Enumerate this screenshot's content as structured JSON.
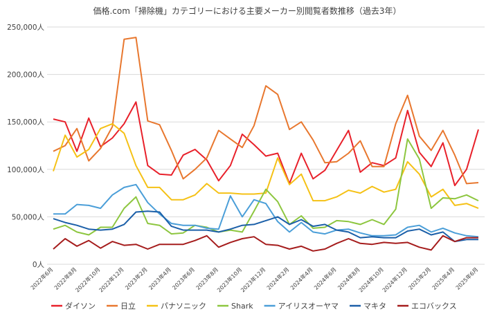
{
  "chart_data": {
    "type": "line",
    "title": "価格.com「掃除機」カテゴリーにおける主要メーカー別閲覧者数推移（過去3年）",
    "xlabel": "",
    "ylabel": "",
    "ylim": [
      0,
      250000
    ],
    "yticks": [
      0,
      50000,
      100000,
      150000,
      200000,
      250000
    ],
    "ytick_labels": [
      "0人",
      "50,000人",
      "100,000人",
      "150,000人",
      "200,000人",
      "250,000人"
    ],
    "grid": true,
    "legend_position": "bottom",
    "x": [
      "2022年6月",
      "2022年7月",
      "2022年8月",
      "2022年9月",
      "2022年10月",
      "2022年11月",
      "2022年12月",
      "2023年1月",
      "2023年2月",
      "2023年3月",
      "2023年4月",
      "2023年5月",
      "2023年6月",
      "2023年7月",
      "2023年8月",
      "2023年9月",
      "2023年10月",
      "2023年11月",
      "2023年12月",
      "2024年1月",
      "2024年2月",
      "2024年3月",
      "2024年4月",
      "2024年5月",
      "2024年6月",
      "2024年7月",
      "2024年8月",
      "2024年9月",
      "2024年10月",
      "2024年11月",
      "2024年12月",
      "2025年1月",
      "2025年2月",
      "2025年3月",
      "2025年4月",
      "2025年5月",
      "2025年6月"
    ],
    "xtick_labels": [
      "2022年6月",
      "2022年8月",
      "2022年10月",
      "2022年12月",
      "2023年2月",
      "2023年4月",
      "2023年6月",
      "2023年8月",
      "2023年10月",
      "2023年12月",
      "2024年2月",
      "2024年4月",
      "2024年6月",
      "2024年8月",
      "2024年10月",
      "2024年12月",
      "2025年2月",
      "2025年4月",
      "2025年6月"
    ],
    "series": [
      {
        "name": "ダイソン",
        "color": "#e8202a",
        "values": [
          153000,
          150000,
          119000,
          154000,
          124000,
          133000,
          148000,
          171000,
          104000,
          95000,
          94000,
          115000,
          121000,
          110000,
          88000,
          104000,
          137000,
          126000,
          114000,
          117000,
          85000,
          117000,
          90000,
          99000,
          120000,
          141000,
          97000,
          107000,
          104000,
          112000,
          162000,
          118000,
          103000,
          128000,
          83000,
          100000,
          142000
        ]
      },
      {
        "name": "日立",
        "color": "#e8772e",
        "values": [
          119000,
          125000,
          143000,
          109000,
          122000,
          145000,
          237000,
          239000,
          151000,
          147000,
          120000,
          90000,
          100000,
          112000,
          141000,
          132000,
          123000,
          146000,
          188000,
          179000,
          142000,
          150000,
          131000,
          107000,
          108000,
          117000,
          130000,
          103000,
          103000,
          148000,
          178000,
          135000,
          120000,
          141000,
          115000,
          85000,
          86000
        ]
      },
      {
        "name": "パナソニック",
        "color": "#f5c115",
        "values": [
          98000,
          136000,
          113000,
          121000,
          143000,
          148000,
          138000,
          104000,
          81000,
          81000,
          68000,
          68000,
          73000,
          85000,
          75000,
          75000,
          74000,
          74000,
          75000,
          112000,
          84000,
          95000,
          67000,
          67000,
          71000,
          78000,
          75000,
          82000,
          76000,
          79000,
          108000,
          95000,
          71000,
          79000,
          62000,
          64000,
          59000
        ]
      },
      {
        "name": "Shark",
        "color": "#8dc63f",
        "values": [
          37000,
          41000,
          34000,
          31000,
          39000,
          39000,
          59000,
          71000,
          43000,
          41000,
          32000,
          33000,
          41000,
          39000,
          34000,
          36000,
          34000,
          56000,
          79000,
          66000,
          42000,
          51000,
          38000,
          39000,
          46000,
          45000,
          42000,
          47000,
          42000,
          58000,
          132000,
          111000,
          59000,
          70000,
          69000,
          73000,
          67000
        ]
      },
      {
        "name": "アイリスオーヤマ",
        "color": "#4a9ed8",
        "values": [
          53000,
          53000,
          63000,
          62000,
          59000,
          73000,
          81000,
          84000,
          65000,
          53000,
          43000,
          41000,
          41000,
          38000,
          37000,
          72000,
          50000,
          68000,
          64000,
          45000,
          34000,
          44000,
          34000,
          32000,
          36000,
          37000,
          33000,
          30000,
          30000,
          31000,
          39000,
          41000,
          34000,
          38000,
          33000,
          30000,
          29000
        ]
      },
      {
        "name": "マキタ",
        "color": "#1b5fa8",
        "values": [
          48000,
          44000,
          41000,
          37000,
          36000,
          37000,
          42000,
          55000,
          56000,
          55000,
          40000,
          36000,
          36000,
          36000,
          34000,
          37000,
          41000,
          42000,
          46000,
          50000,
          42000,
          47000,
          40000,
          42000,
          36000,
          34000,
          28000,
          29000,
          28000,
          28000,
          35000,
          37000,
          31000,
          34000,
          24000,
          26000,
          26000
        ]
      },
      {
        "name": "エコバックス",
        "color": "#a51c1c",
        "values": [
          16000,
          27000,
          19000,
          25000,
          17000,
          24000,
          20000,
          21000,
          16000,
          21000,
          21000,
          21000,
          25000,
          30000,
          18000,
          23000,
          27000,
          29000,
          21000,
          20000,
          16000,
          19000,
          14000,
          16000,
          22000,
          27000,
          22000,
          21000,
          23000,
          22000,
          23000,
          18000,
          15000,
          30000,
          24000,
          28000,
          28000
        ]
      }
    ]
  }
}
